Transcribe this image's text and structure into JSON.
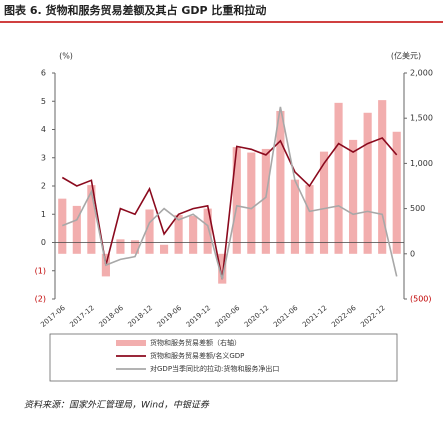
{
  "chart_data": {
    "type": "bar-line",
    "title": "图表 6. 货物和服务贸易差额及其占 GDP 比重和拉动",
    "y_label": "(%)",
    "y2_label": "(亿美元)",
    "source": "资料来源：国家外汇管理局，Wind，中银证券",
    "categories": [
      "2017-06",
      null,
      "2017-12",
      null,
      "2018-06",
      null,
      "2018-12",
      null,
      "2019-06",
      null,
      "2019-12",
      null,
      "2020-06",
      null,
      "2020-12",
      null,
      "2021-06",
      null,
      "2021-12",
      null,
      "2022-06",
      null,
      "2022-12",
      null
    ],
    "series": [
      {
        "name": "货物和服务贸易差额（右轴）",
        "type": "bar",
        "axis": "y2",
        "color": "#f2aeae",
        "values": [
          610,
          530,
          760,
          -250,
          160,
          150,
          490,
          100,
          430,
          420,
          500,
          -330,
          1180,
          1120,
          1160,
          1580,
          820,
          760,
          1130,
          1670,
          1260,
          1560,
          1700,
          1350
        ]
      },
      {
        "name": "货物和服务贸易差额/名义GDP",
        "type": "line",
        "color": "#8b0a1e",
        "values": [
          2.3,
          2.0,
          2.2,
          -0.8,
          1.2,
          1.0,
          1.9,
          0.3,
          1.0,
          1.2,
          1.3,
          -1.3,
          3.4,
          3.3,
          3.1,
          3.6,
          2.5,
          2.0,
          2.8,
          3.5,
          3.2,
          3.5,
          3.7,
          3.1
        ]
      },
      {
        "name": "对GDP当季同比的拉动:货物和服务净出口",
        "type": "line",
        "color": "#a8a8a8",
        "values": [
          0.6,
          0.8,
          1.8,
          -0.8,
          -0.6,
          -0.5,
          0.7,
          1.2,
          0.8,
          1.0,
          0.6,
          -1.3,
          1.3,
          1.2,
          1.6,
          4.8,
          2.2,
          1.1,
          1.2,
          1.3,
          1.0,
          1.1,
          1.0,
          -1.2
        ]
      }
    ],
    "ylim": [
      -2,
      6
    ],
    "yticks": [
      6,
      5,
      4,
      3,
      2,
      1,
      0,
      {
        "value": -1,
        "label": "(1)"
      },
      {
        "value": -2,
        "label": "(2)"
      }
    ],
    "y2lim": [
      -500,
      2000
    ],
    "y2ticks": [
      {
        "value": 2000,
        "label": "2,000"
      },
      {
        "value": 1500,
        "label": "1,500"
      },
      {
        "value": 1000,
        "label": "1,000"
      },
      500,
      0,
      {
        "value": -500,
        "label": "(500)"
      }
    ]
  }
}
